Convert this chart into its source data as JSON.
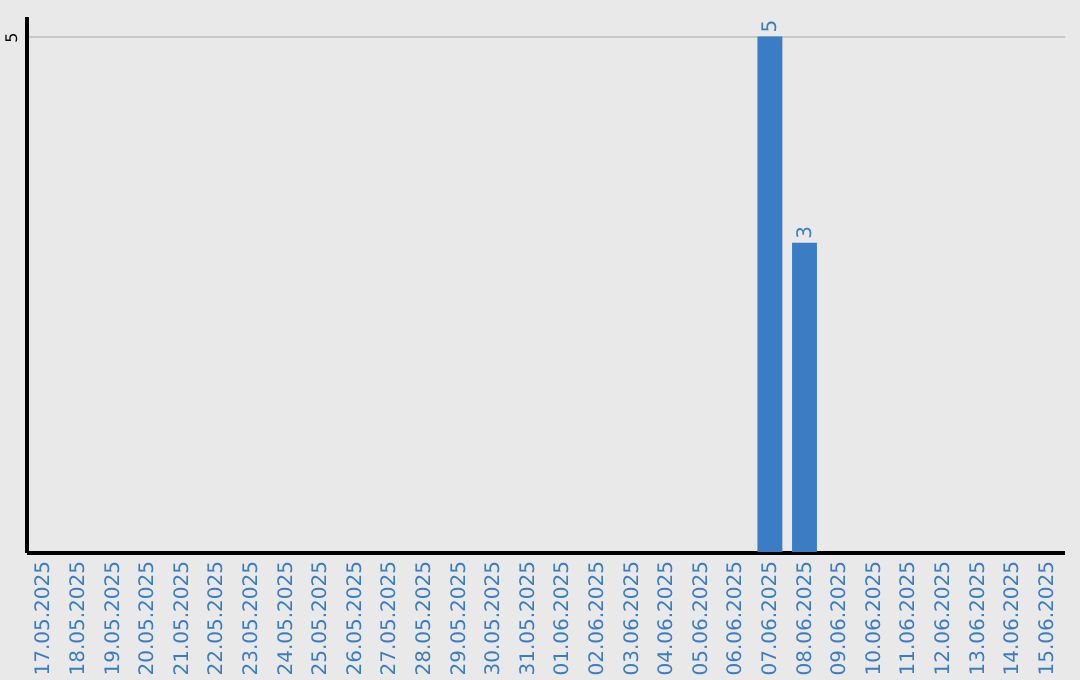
{
  "chart_data": {
    "type": "bar",
    "categories": [
      "17.05.2025",
      "18.05.2025",
      "19.05.2025",
      "20.05.2025",
      "21.05.2025",
      "22.05.2025",
      "23.05.2025",
      "24.05.2025",
      "25.05.2025",
      "26.05.2025",
      "27.05.2025",
      "28.05.2025",
      "29.05.2025",
      "30.05.2025",
      "31.05.2025",
      "01.06.2025",
      "02.06.2025",
      "03.06.2025",
      "04.06.2025",
      "05.06.2025",
      "06.06.2025",
      "07.06.2025",
      "08.06.2025",
      "09.06.2025",
      "10.06.2025",
      "11.06.2025",
      "12.06.2025",
      "13.06.2025",
      "14.06.2025",
      "15.06.2025"
    ],
    "values": [
      null,
      null,
      null,
      null,
      null,
      null,
      null,
      null,
      null,
      null,
      null,
      null,
      null,
      null,
      null,
      null,
      null,
      null,
      null,
      null,
      null,
      5,
      3,
      null,
      null,
      null,
      null,
      null,
      null,
      null
    ],
    "data_labels": true,
    "color": "#3b7dc4",
    "ylim": [
      0,
      5.2
    ],
    "yticks": [
      5
    ],
    "grid": "y"
  }
}
